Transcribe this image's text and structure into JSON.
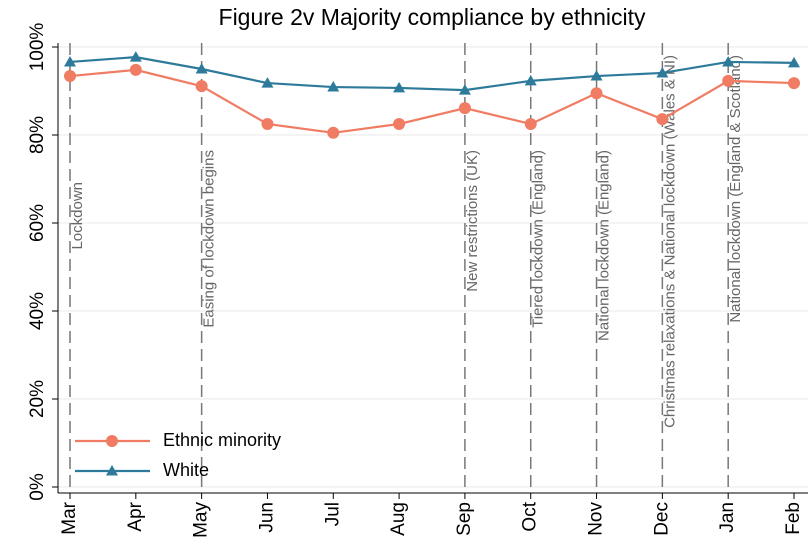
{
  "chart_data": {
    "type": "line",
    "title": "Figure 2v Majority compliance by ethnicity",
    "categories": [
      "Mar",
      "Apr",
      "May",
      "Jun",
      "Jul",
      "Aug",
      "Sep",
      "Oct",
      "Nov",
      "Dec",
      "Jan",
      "Feb"
    ],
    "series": [
      {
        "name": "Ethnic minority",
        "color": "#f07c63",
        "marker": "circle",
        "values": [
          93.4,
          94.8,
          91.1,
          82.5,
          80.5,
          82.5,
          86.1,
          82.5,
          89.5,
          83.6,
          92.3,
          91.8
        ]
      },
      {
        "name": "White",
        "color": "#2e7a9b",
        "marker": "triangle",
        "values": [
          96.6,
          97.7,
          95.0,
          91.8,
          90.9,
          90.7,
          90.2,
          92.3,
          93.4,
          94.1,
          96.6,
          96.4
        ]
      }
    ],
    "ylim": [
      0,
      100
    ],
    "yticks": [
      {
        "value": 0,
        "label": "0%"
      },
      {
        "value": 20,
        "label": "20%"
      },
      {
        "value": 40,
        "label": "40%"
      },
      {
        "value": 60,
        "label": "60%"
      },
      {
        "value": 80,
        "label": "80%"
      },
      {
        "value": 100,
        "label": "100%"
      }
    ],
    "grid": true,
    "legend": "lower left",
    "annotations": [
      {
        "category": "Mar",
        "label": "Lockdown"
      },
      {
        "category": "May",
        "label": "Easing of lockdown begins"
      },
      {
        "category": "Sep",
        "label": "New restrictions (UK)"
      },
      {
        "category": "Oct",
        "label": "Tiered lockdown (England)"
      },
      {
        "category": "Nov",
        "label": "National lockdown (England)"
      },
      {
        "category": "Dec",
        "label": "Christmas relaxations & National lockdown (Wales & NI)"
      },
      {
        "category": "Jan",
        "label": "National lockdown (England & Scotland)"
      }
    ]
  }
}
